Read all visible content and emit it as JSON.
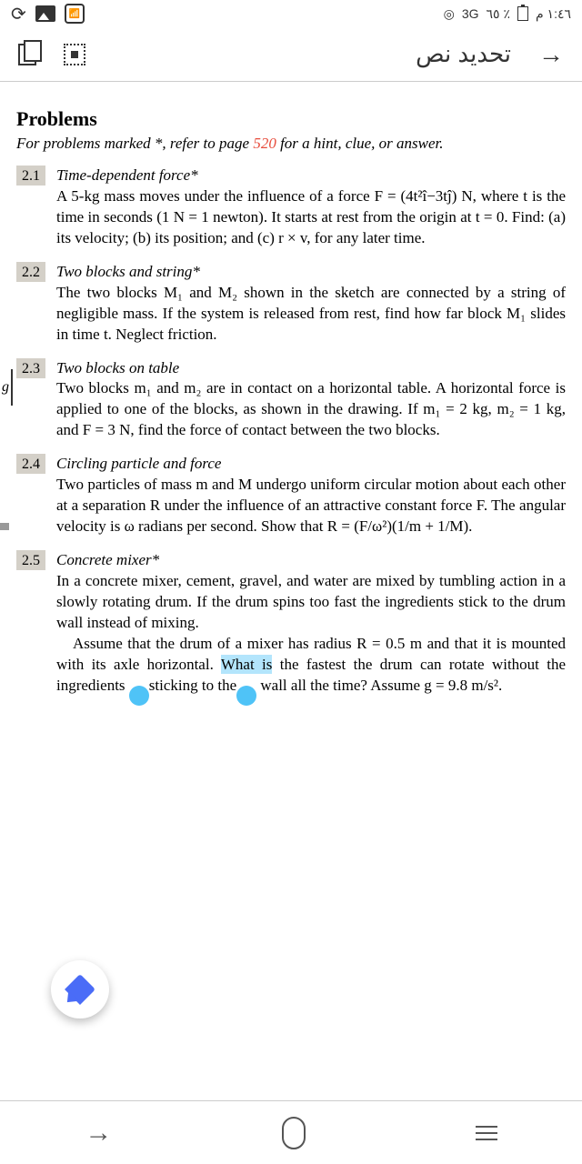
{
  "status": {
    "time": "١:٤٦ م",
    "battery": "٪ ٦٥",
    "network": "3G"
  },
  "header": {
    "title": "تحديد نص"
  },
  "content": {
    "section_title": "Problems",
    "section_subtitle_pre": "For problems marked *, refer to page ",
    "section_subtitle_page": "520",
    "section_subtitle_post": " for a hint, clue, or answer.",
    "problems": [
      {
        "num": "2.1",
        "title": "Time-dependent force*",
        "body": "A 5-kg mass moves under the influence of a force F = (4t²î−3tĵ) N, where t is the time in seconds (1 N = 1 newton). It starts at rest from the origin at t = 0. Find: (a) its velocity; (b) its position; and (c) r × v, for any later time."
      },
      {
        "num": "2.2",
        "title": "Two blocks and string*",
        "body": "The two blocks M₁ and M₂ shown in the sketch are connected by a string of negligible mass. If the system is released from rest, find how far block M₁ slides in time t. Neglect friction."
      },
      {
        "num": "2.3",
        "title": "Two blocks on table",
        "body": "Two blocks m₁ and m₂ are in contact on a horizontal table. A horizontal force is applied to one of the blocks, as shown in the drawing. If m₁ = 2 kg, m₂ = 1 kg, and F = 3 N, find the force of contact between the two blocks."
      },
      {
        "num": "2.4",
        "title": "Circling particle and force",
        "body": "Two particles of mass m and M undergo uniform circular motion about each other at a separation R under the influence of an attractive constant force F. The angular velocity is ω radians per second. Show that R = (F/ω²)(1/m + 1/M)."
      },
      {
        "num": "2.5",
        "title": "Concrete mixer*",
        "body_p1": "In a concrete mixer, cement, gravel, and water are mixed by tumbling action in a slowly rotating drum. If the drum spins too fast the ingredients stick to the drum wall instead of mixing.",
        "body_p2_pre": "Assume that the drum of a mixer has radius R = 0.5 m and that it is mounted with its axle horizontal. ",
        "body_p2_sel": "What is",
        "body_p2_mid": " the fastest the drum can rotate without the ingredients ",
        "body_p2_sel2_a": "sticking",
        "body_p2_sel2_b": " to the",
        "body_p2_post": " wall all the time? Assume g = 9.8 m/s²."
      }
    ]
  },
  "g_label": "g"
}
